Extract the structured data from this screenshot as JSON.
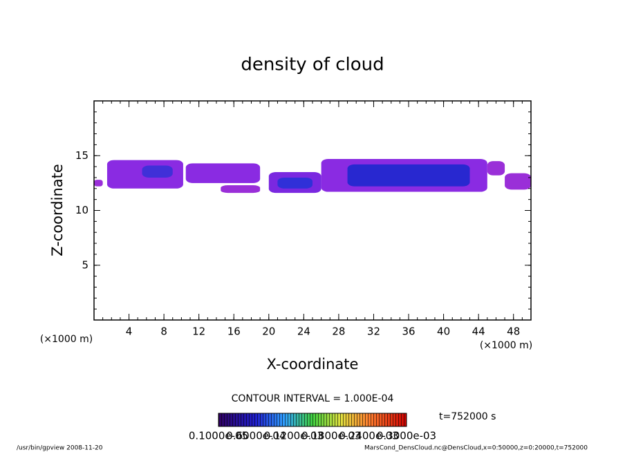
{
  "chart_data": {
    "type": "contour",
    "title": "density of cloud",
    "x_label": "X-coordinate",
    "y_label": "Z-coordinate",
    "x_unit": "(×1000 m)",
    "y_unit": "(×1000 m)",
    "xlim": [
      0,
      50
    ],
    "xticks": [
      4,
      8,
      12,
      16,
      20,
      24,
      28,
      32,
      36,
      40,
      44,
      48
    ],
    "ylim": [
      0,
      20
    ],
    "yticks": [
      5,
      10,
      15
    ],
    "patches": [
      {
        "x0": 0,
        "x1": 1,
        "z0": 12.2,
        "z1": 12.8,
        "color": "#9a2fd8"
      },
      {
        "x0": 1.5,
        "x1": 10.2,
        "z0": 12,
        "z1": 14.6,
        "color": "#8a2be2"
      },
      {
        "x0": 5.5,
        "x1": 9,
        "z0": 13,
        "z1": 14.1,
        "color": "#4030d8"
      },
      {
        "x0": 10.5,
        "x1": 19,
        "z0": 12.5,
        "z1": 14.3,
        "color": "#8a2be2"
      },
      {
        "x0": 14.5,
        "x1": 19,
        "z0": 11.6,
        "z1": 12.3,
        "color": "#9a2fd8"
      },
      {
        "x0": 20,
        "x1": 26,
        "z0": 11.6,
        "z1": 13.5,
        "color": "#7a28e0"
      },
      {
        "x0": 21,
        "x1": 25,
        "z0": 12,
        "z1": 13,
        "color": "#3030d8"
      },
      {
        "x0": 26,
        "x1": 45,
        "z0": 11.7,
        "z1": 14.7,
        "color": "#8a2be2"
      },
      {
        "x0": 29,
        "x1": 43,
        "z0": 12.2,
        "z1": 14.2,
        "color": "#2828d0"
      },
      {
        "x0": 45,
        "x1": 47,
        "z0": 13.2,
        "z1": 14.5,
        "color": "#9a2fd8"
      },
      {
        "x0": 47,
        "x1": 50,
        "z0": 11.9,
        "z1": 13.4,
        "color": "#9a2fd8"
      }
    ],
    "contour_interval": "CONTOUR INTERVAL = 1.000E-04",
    "time": "t=752000 s",
    "colorbar_labels": [
      "0.1000e-05",
      "0.6000e-04",
      "0.1200e-03",
      "0.1800e-03",
      "0.2400e-03",
      "0.3000e-03"
    ],
    "footer_left": "/usr/bin/gpview   2008-11-20",
    "footer_right": "MarsCond_DensCloud.nc@DensCloud,x=0:50000,z=0:20000,t=752000"
  }
}
